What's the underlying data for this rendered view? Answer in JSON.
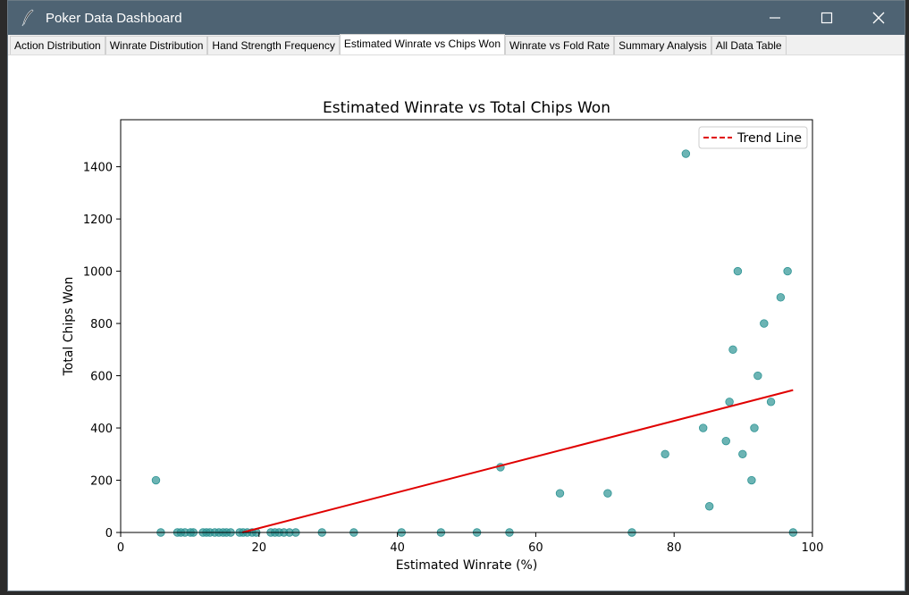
{
  "window": {
    "title": "Poker Data Dashboard",
    "icon": "feather-pen-icon",
    "controls": [
      "minimize-icon",
      "maximize-icon",
      "close-icon"
    ]
  },
  "tabs": [
    {
      "label": "Action Distribution",
      "active": false
    },
    {
      "label": "Winrate Distribution",
      "active": false
    },
    {
      "label": "Hand Strength Frequency",
      "active": false
    },
    {
      "label": "Estimated Winrate vs Chips Won",
      "active": true
    },
    {
      "label": "Winrate vs Fold Rate",
      "active": false
    },
    {
      "label": "Summary Analysis",
      "active": false
    },
    {
      "label": "All Data Table",
      "active": false
    }
  ],
  "chart_data": {
    "type": "scatter",
    "title": "Estimated Winrate vs Total Chips Won",
    "xlabel": "Estimated Winrate (%)",
    "ylabel": "Total Chips Won",
    "xlim": [
      0,
      100
    ],
    "ylim": [
      0,
      1580
    ],
    "xticks": [
      0,
      20,
      40,
      60,
      80,
      100
    ],
    "yticks": [
      0,
      200,
      400,
      600,
      800,
      1000,
      1200,
      1400
    ],
    "grid": false,
    "legend": {
      "position": "top-right",
      "entries": [
        "Trend Line"
      ]
    },
    "point_color": "#2e9494",
    "trend_color": "#e00000",
    "points": [
      [
        5.1,
        200
      ],
      [
        5.8,
        0
      ],
      [
        8.2,
        0
      ],
      [
        8.7,
        0
      ],
      [
        9.3,
        0
      ],
      [
        10.1,
        0
      ],
      [
        10.5,
        0
      ],
      [
        11.9,
        0
      ],
      [
        12.4,
        0
      ],
      [
        12.9,
        0
      ],
      [
        13.6,
        0
      ],
      [
        14.2,
        0
      ],
      [
        14.8,
        0
      ],
      [
        15.3,
        0
      ],
      [
        15.9,
        0
      ],
      [
        17.2,
        0
      ],
      [
        17.7,
        0
      ],
      [
        18.3,
        0
      ],
      [
        19.0,
        0
      ],
      [
        19.6,
        0
      ],
      [
        21.7,
        0
      ],
      [
        22.3,
        0
      ],
      [
        22.9,
        0
      ],
      [
        23.6,
        0
      ],
      [
        24.4,
        0
      ],
      [
        25.3,
        0
      ],
      [
        29.1,
        0
      ],
      [
        33.7,
        0
      ],
      [
        40.6,
        0
      ],
      [
        46.3,
        0
      ],
      [
        51.5,
        0
      ],
      [
        54.9,
        250
      ],
      [
        56.2,
        0
      ],
      [
        63.5,
        150
      ],
      [
        70.4,
        150
      ],
      [
        73.9,
        0
      ],
      [
        78.7,
        300
      ],
      [
        81.7,
        1450
      ],
      [
        84.2,
        400
      ],
      [
        85.1,
        100
      ],
      [
        87.5,
        350
      ],
      [
        88.0,
        500
      ],
      [
        88.5,
        700
      ],
      [
        89.2,
        1000
      ],
      [
        89.9,
        300
      ],
      [
        91.2,
        200
      ],
      [
        91.6,
        400
      ],
      [
        92.1,
        600
      ],
      [
        93.0,
        800
      ],
      [
        94.0,
        500
      ],
      [
        95.4,
        900
      ],
      [
        96.4,
        1000
      ],
      [
        97.2,
        0
      ]
    ],
    "trend_line": {
      "x": [
        17.6,
        97.2
      ],
      "y": [
        0,
        545
      ]
    }
  }
}
